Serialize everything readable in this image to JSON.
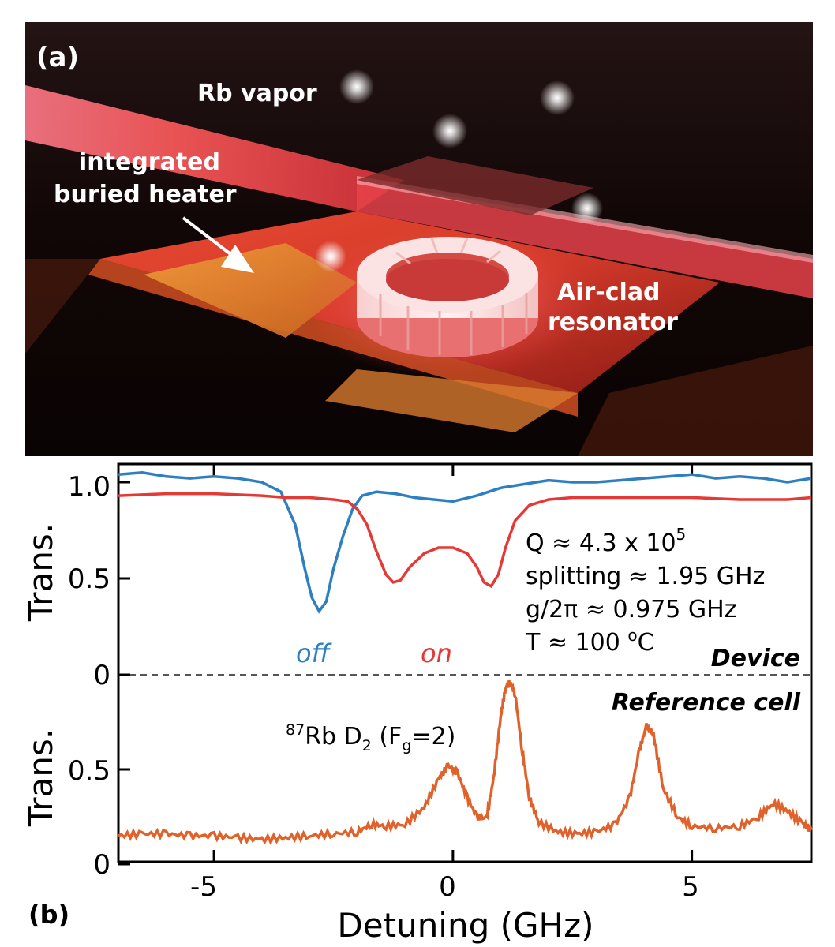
{
  "panel_a": {
    "panel_label": "(a)",
    "labels": {
      "vapor": "Rb vapor",
      "heater_line1": "integrated",
      "heater_line2": "buried heater",
      "resonator_line1": "Air-clad",
      "resonator_line2": "resonator"
    }
  },
  "panel_b": {
    "panel_label": "(b)",
    "xlabel": "Detuning (GHz)",
    "ylabel_top": "Trans.",
    "ylabel_bottom": "Trans.",
    "annotations": {
      "q_factor": "Q ≈ 4.3 x 10",
      "q_exp": "5",
      "splitting": "splitting ≈ 1.95 GHz",
      "coupling": "g/2π ≈ 0.975 GHz",
      "temp_prefix": "T ≈ 100 ",
      "temp_deg": "o",
      "temp_unit": "C",
      "off": "off",
      "on": "on",
      "device": "Device",
      "reference": "Reference cell",
      "rb_sup": "87",
      "rb_main": "Rb D",
      "rb_sub2": "2",
      "rb_paren": " (F",
      "rb_subg": "g",
      "rb_end": "=2)"
    },
    "colors": {
      "off": "#2e7fc0",
      "on": "#e53935",
      "reference": "#e0622a"
    }
  },
  "chart_data": [
    {
      "type": "line",
      "name": "Device",
      "xlim": [
        -7,
        7.5
      ],
      "ylim": [
        0,
        1.1
      ],
      "x_ticks": [
        -5,
        0,
        5
      ],
      "y_ticks": [
        0,
        0.5,
        1.0
      ],
      "y_tick_labels": [
        "0",
        "0.5",
        "1.0"
      ],
      "ylabel": "Trans.",
      "series": [
        {
          "name": "off",
          "x": [
            -7,
            -6.5,
            -6,
            -5.5,
            -5,
            -4.5,
            -4,
            -3.6,
            -3.3,
            -3.1,
            -2.95,
            -2.8,
            -2.65,
            -2.5,
            -2.3,
            -2.1,
            -1.9,
            -1.6,
            -1.2,
            -0.8,
            -0.4,
            0,
            0.5,
            1,
            1.5,
            2,
            2.5,
            3,
            3.5,
            4,
            4.5,
            5,
            5.5,
            6,
            6.5,
            7,
            7.5
          ],
          "y": [
            1.04,
            1.05,
            1.03,
            1.02,
            1.03,
            1.02,
            1.0,
            0.95,
            0.78,
            0.55,
            0.4,
            0.33,
            0.38,
            0.55,
            0.72,
            0.86,
            0.93,
            0.95,
            0.94,
            0.92,
            0.91,
            0.9,
            0.93,
            0.97,
            0.99,
            1.01,
            1.0,
            1.0,
            1.01,
            1.02,
            1.03,
            1.04,
            1.02,
            1.03,
            1.02,
            1.0,
            1.02
          ]
        },
        {
          "name": "on",
          "x": [
            -7,
            -6,
            -5,
            -4,
            -3.5,
            -3,
            -2.5,
            -2.2,
            -2,
            -1.8,
            -1.6,
            -1.4,
            -1.25,
            -1.1,
            -0.9,
            -0.6,
            -0.3,
            0,
            0.3,
            0.5,
            0.65,
            0.8,
            0.95,
            1.1,
            1.3,
            1.6,
            2,
            2.5,
            3,
            4,
            5,
            6,
            7,
            7.5
          ],
          "y": [
            0.93,
            0.94,
            0.94,
            0.93,
            0.92,
            0.92,
            0.91,
            0.9,
            0.86,
            0.78,
            0.64,
            0.52,
            0.48,
            0.49,
            0.56,
            0.63,
            0.66,
            0.66,
            0.63,
            0.56,
            0.48,
            0.46,
            0.52,
            0.66,
            0.8,
            0.88,
            0.91,
            0.92,
            0.92,
            0.92,
            0.92,
            0.91,
            0.91,
            0.92
          ]
        }
      ]
    },
    {
      "type": "line",
      "name": "Reference cell",
      "xlim": [
        -7,
        7.5
      ],
      "ylim": [
        0,
        1.0
      ],
      "x_ticks": [
        -5,
        0,
        5
      ],
      "x_tick_labels": [
        "-5",
        "0",
        "5"
      ],
      "y_ticks": [
        0,
        0.5
      ],
      "y_tick_labels": [
        "0",
        "0.5"
      ],
      "xlabel": "Detuning (GHz)",
      "ylabel": "Trans.",
      "series": [
        {
          "name": "Reference cell",
          "x": [
            -7,
            -6.5,
            -6,
            -5.5,
            -5,
            -4.5,
            -4,
            -3.5,
            -3,
            -2.5,
            -2,
            -1.7,
            -1.4,
            -1.0,
            -0.6,
            -0.3,
            -0.1,
            0.1,
            0.3,
            0.5,
            0.7,
            0.85,
            1.0,
            1.1,
            1.2,
            1.3,
            1.45,
            1.6,
            1.8,
            2.2,
            2.6,
            3.0,
            3.4,
            3.7,
            3.9,
            4.05,
            4.2,
            4.4,
            4.7,
            5.0,
            5.5,
            6.0,
            6.4,
            6.7,
            7.0,
            7.3,
            7.5
          ],
          "y": [
            0.15,
            0.16,
            0.16,
            0.15,
            0.15,
            0.14,
            0.13,
            0.14,
            0.15,
            0.16,
            0.17,
            0.21,
            0.2,
            0.21,
            0.3,
            0.45,
            0.52,
            0.48,
            0.35,
            0.25,
            0.24,
            0.45,
            0.78,
            0.93,
            0.96,
            0.9,
            0.6,
            0.35,
            0.22,
            0.17,
            0.16,
            0.17,
            0.21,
            0.35,
            0.6,
            0.73,
            0.68,
            0.4,
            0.25,
            0.2,
            0.19,
            0.2,
            0.25,
            0.32,
            0.28,
            0.22,
            0.18
          ]
        }
      ]
    }
  ]
}
